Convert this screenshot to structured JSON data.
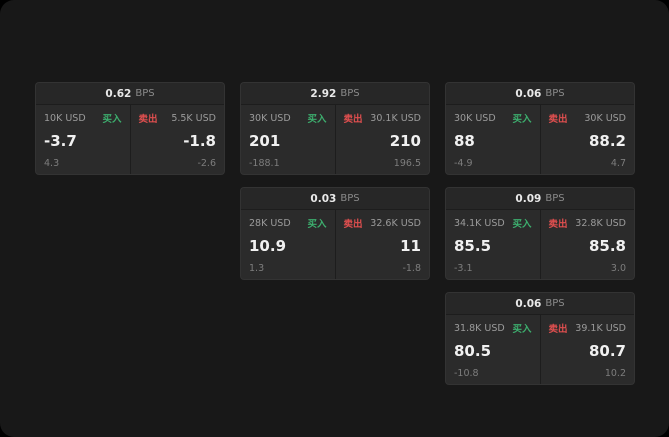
{
  "labels": {
    "buy": "买入",
    "sell": "卖出",
    "bps": "BPS"
  },
  "colors": {
    "buy": "#3dae6e",
    "sell": "#e04f4f",
    "background": "#181818",
    "card": "#2b2b2b"
  },
  "cards": [
    {
      "bps": "0.62",
      "buy": {
        "amount": "10K USD",
        "price": "-3.7",
        "delta": "4.3"
      },
      "sell": {
        "amount": "5.5K USD",
        "price": "-1.8",
        "delta": "-2.6"
      }
    },
    {
      "bps": "2.92",
      "buy": {
        "amount": "30K USD",
        "price": "201",
        "delta": "-188.1"
      },
      "sell": {
        "amount": "30.1K USD",
        "price": "210",
        "delta": "196.5"
      }
    },
    {
      "bps": "0.06",
      "buy": {
        "amount": "30K USD",
        "price": "88",
        "delta": "-4.9"
      },
      "sell": {
        "amount": "30K USD",
        "price": "88.2",
        "delta": "4.7"
      }
    },
    {
      "bps": "0.03",
      "buy": {
        "amount": "28K USD",
        "price": "10.9",
        "delta": "1.3"
      },
      "sell": {
        "amount": "32.6K USD",
        "price": "11",
        "delta": "-1.8"
      }
    },
    {
      "bps": "0.09",
      "buy": {
        "amount": "34.1K USD",
        "price": "85.5",
        "delta": "-3.1"
      },
      "sell": {
        "amount": "32.8K USD",
        "price": "85.8",
        "delta": "3.0"
      }
    },
    {
      "bps": "0.06",
      "buy": {
        "amount": "31.8K USD",
        "price": "80.5",
        "delta": "-10.8"
      },
      "sell": {
        "amount": "39.1K USD",
        "price": "80.7",
        "delta": "10.2"
      }
    }
  ]
}
